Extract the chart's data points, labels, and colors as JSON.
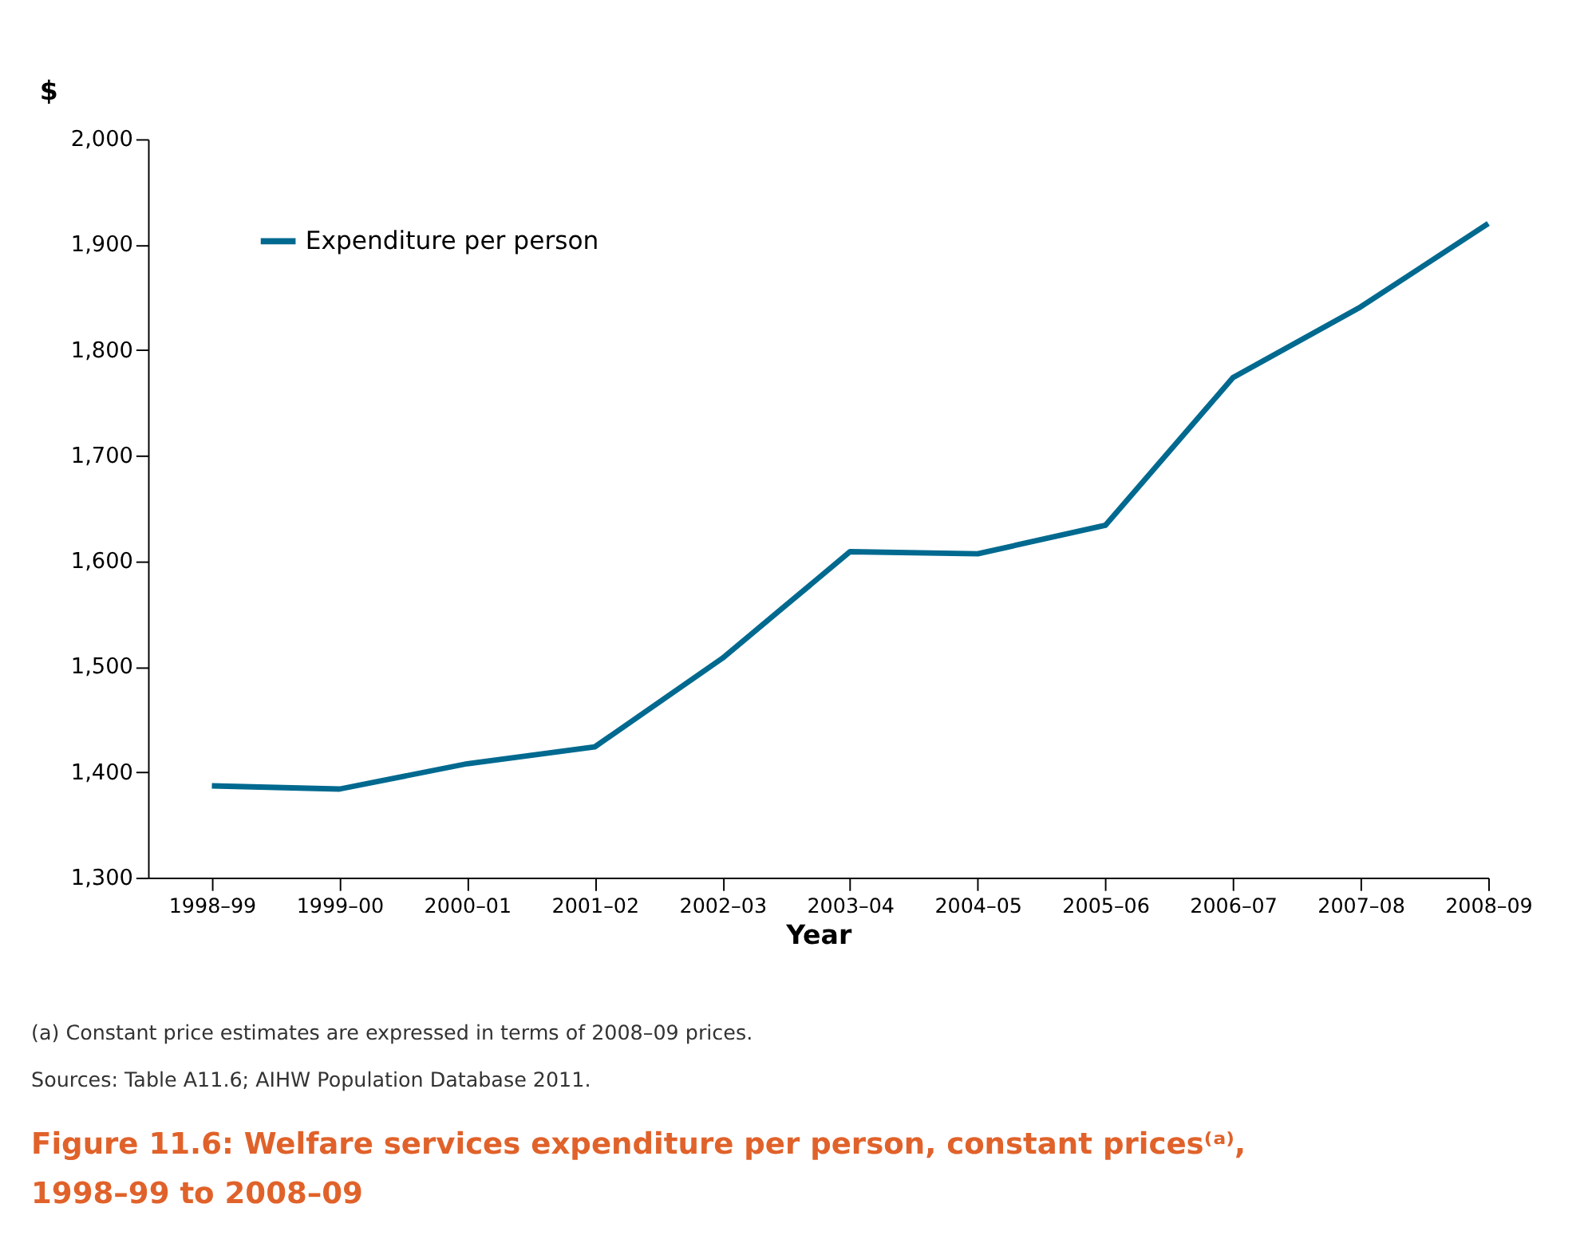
{
  "chart_data": {
    "type": "line",
    "title": "Figure 11.6: Welfare services expenditure per person, constant prices⁽ᵃ⁾, 1998–99 to 2008–09",
    "xlabel": "Year",
    "ylabel": "$",
    "categories": [
      "1998–99",
      "1999–00",
      "2000–01",
      "2001–02",
      "2002–03",
      "2003–04",
      "2004–05",
      "2005–06",
      "2006–07",
      "2007–08",
      "2008–09"
    ],
    "series": [
      {
        "name": "Expenditure per person",
        "color": "#00698f",
        "values": [
          1387,
          1384,
          1408,
          1424,
          1508,
          1609,
          1607,
          1634,
          1774,
          1841,
          1920
        ]
      }
    ],
    "ylim": [
      1300,
      2000
    ],
    "yticks": [
      {
        "value": 1300,
        "label": "1,300"
      },
      {
        "value": 1400,
        "label": "1,400"
      },
      {
        "value": 1500,
        "label": "1,500"
      },
      {
        "value": 1600,
        "label": "1,600"
      },
      {
        "value": 1700,
        "label": "1,700"
      },
      {
        "value": 1800,
        "label": "1,800"
      },
      {
        "value": 1900,
        "label": "1,900"
      },
      {
        "value": 2000,
        "label": "2,000"
      }
    ],
    "grid": false,
    "legend": "top left",
    "marker": "none",
    "line_style": "solid",
    "annotations": [
      "(a)  Constant price estimates are expressed in terms of 2008–09 prices.",
      "Sources: Table A11.6; AIHW Population Database 2011."
    ]
  }
}
